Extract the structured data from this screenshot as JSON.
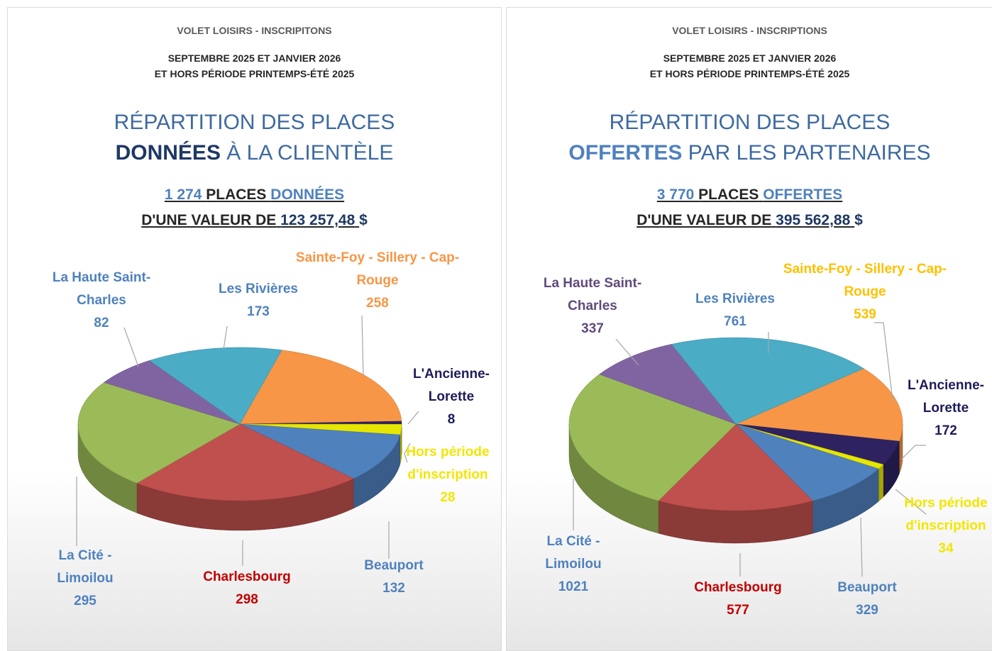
{
  "chart_data": [
    {
      "type": "pie",
      "header": "VOLET LOISIRS - INSCRIPITONS",
      "subtitle": [
        "SEPTEMBRE 2025 ET JANVIER 2026",
        "ET HORS PÉRIODE PRINTEMPS-ÉTÉ 2025"
      ],
      "title": [
        "RÉPARTITION DES PLACES",
        "DONNÉES",
        "À LA CLIENTÈLE"
      ],
      "summary": [
        "1 274",
        "PLACES",
        "DONNÉES",
        "D'UNE VALEUR DE",
        "123 257,48",
        "$"
      ],
      "categories": [
        "Sainte-Foy - Sillery - Cap-Rouge",
        "L'Ancienne-Lorette",
        "Hors période d'inscription",
        "Beauport",
        "Charlesbourg",
        "La Cité - Limoilou",
        "La Haute Saint-Charles",
        "Les Rivières"
      ],
      "values": [
        258,
        8,
        28,
        132,
        298,
        295,
        82,
        173
      ],
      "colors": [
        "#f79646",
        "#2e2360",
        "#e6e600",
        "#4f81bd",
        "#c0504d",
        "#9bbb59",
        "#8064a2",
        "#4bacc6"
      ],
      "label_colors": [
        "#f79646",
        "#1f1b5a",
        "#f2e600",
        "#4f81bd",
        "#c00000",
        "#4f81bd",
        "#4f81bd",
        "#4f81bd"
      ]
    },
    {
      "type": "pie",
      "header": "VOLET LOISIRS - INSCRIPTIONS",
      "subtitle": [
        "SEPTEMBRE 2025 ET JANVIER 2026",
        "ET HORS PÉRIODE PRINTEMPS-ÉTÉ 2025"
      ],
      "title": [
        "RÉPARTITION DES PLACES",
        "OFFERTES",
        "PAR LES PARTENAIRES"
      ],
      "summary": [
        "3 770",
        "PLACES",
        "OFFERTES",
        "D'UNE VALEUR DE",
        "395 562,88",
        "$"
      ],
      "categories": [
        "Sainte-Foy - Sillery - Cap-Rouge",
        "L'Ancienne-Lorette",
        "Hors période d'inscription",
        "Beauport",
        "Charlesbourg",
        "La Cité - Limoilou",
        "La Haute Saint-Charles",
        "Les Rivières"
      ],
      "values": [
        539,
        172,
        34,
        329,
        577,
        1021,
        337,
        761
      ],
      "colors": [
        "#f79646",
        "#2e2360",
        "#e6e600",
        "#4f81bd",
        "#c0504d",
        "#9bbb59",
        "#8064a2",
        "#4bacc6"
      ],
      "label_colors": [
        "#ffc000",
        "#1f1b5a",
        "#f2e600",
        "#4f81bd",
        "#c00000",
        "#4f81bd",
        "#604a7b",
        "#4f81bd"
      ]
    }
  ]
}
